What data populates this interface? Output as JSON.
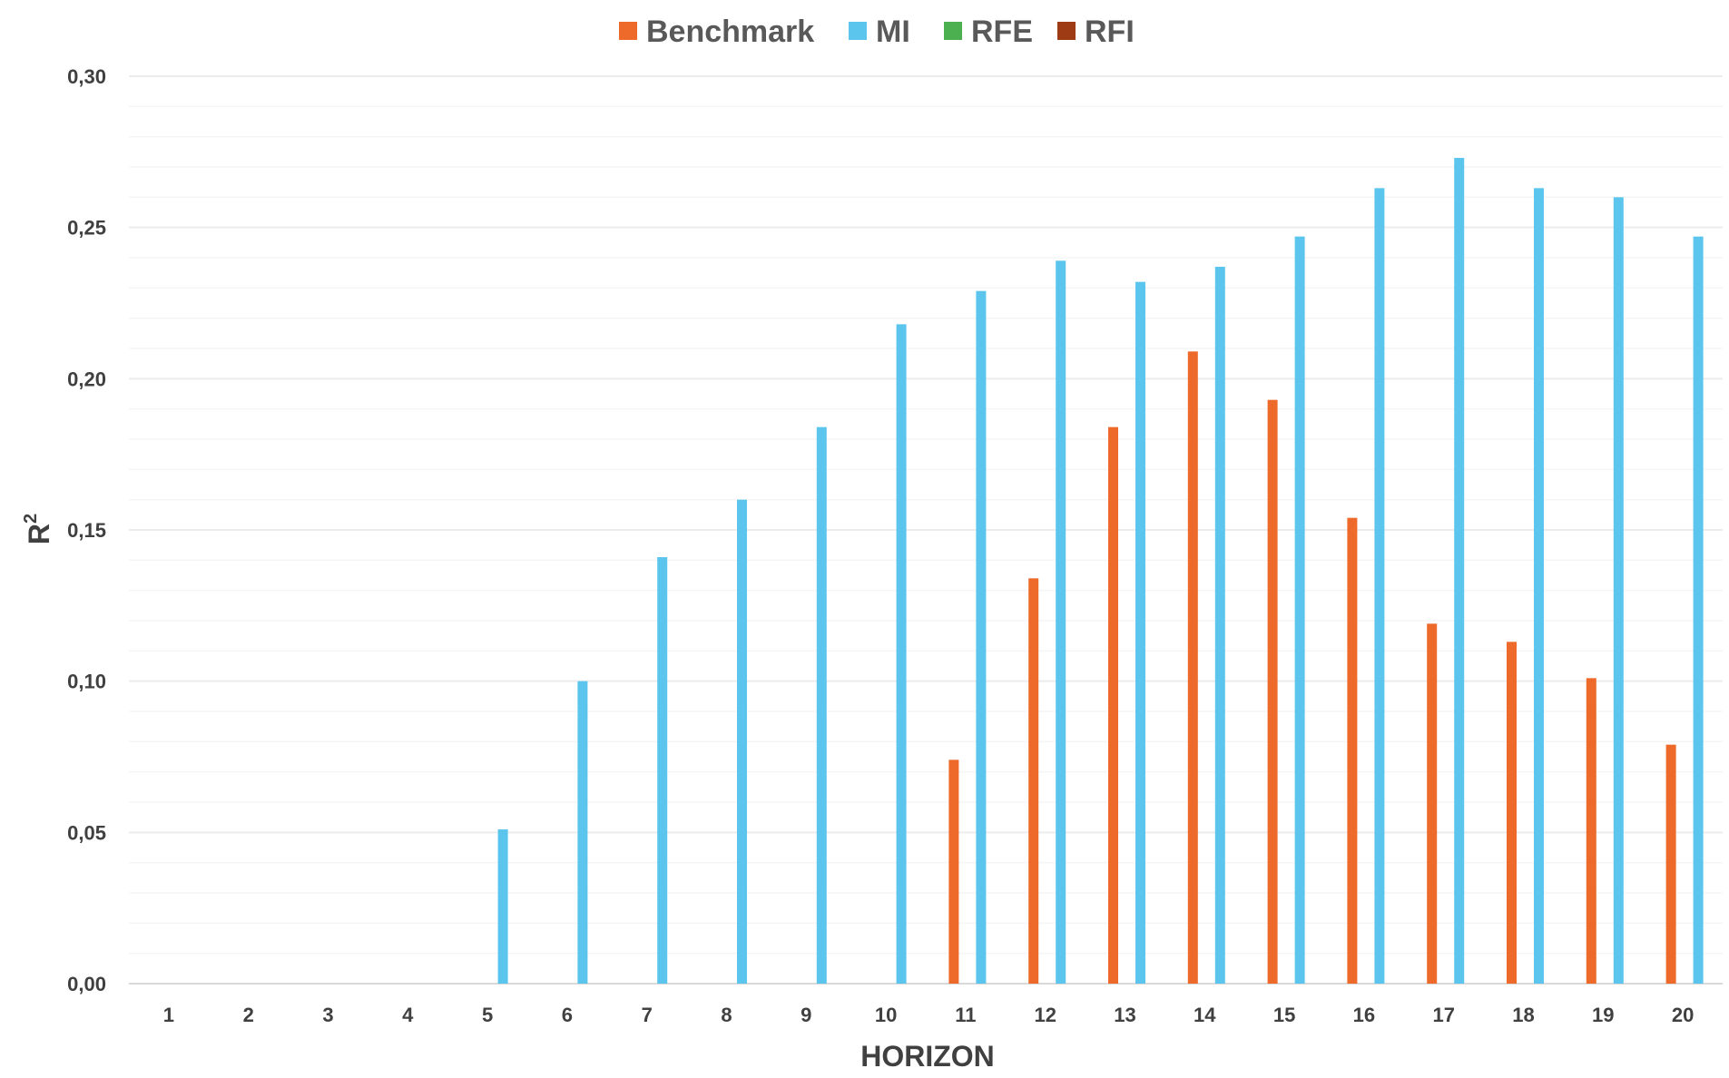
{
  "chart_data": {
    "type": "bar",
    "title": "",
    "xlabel": "HORIZON",
    "ylabel": "R",
    "ylabel_superscript": "2",
    "categories": [
      "1",
      "2",
      "3",
      "4",
      "5",
      "6",
      "7",
      "8",
      "9",
      "10",
      "11",
      "12",
      "13",
      "14",
      "15",
      "16",
      "17",
      "18",
      "19",
      "20"
    ],
    "ylim": [
      0,
      0.3
    ],
    "yticks": [
      0,
      0.05,
      0.1,
      0.15,
      0.2,
      0.25,
      0.3
    ],
    "ytick_labels": [
      "0,00",
      "0,05",
      "0,10",
      "0,15",
      "0,20",
      "0,25",
      "0,30"
    ],
    "grid": true,
    "legend_position": "top-center",
    "series": [
      {
        "name": "Benchmark",
        "color": "#ED6A2A",
        "values": [
          0,
          0,
          0,
          0,
          0,
          0,
          0,
          0,
          0,
          0,
          0.074,
          0.134,
          0.184,
          0.209,
          0.193,
          0.154,
          0.119,
          0.113,
          0.101,
          0.079
        ]
      },
      {
        "name": "MI",
        "color": "#5BC5EE",
        "values": [
          0,
          0,
          0,
          0,
          0.051,
          0.1,
          0.141,
          0.16,
          0.184,
          0.218,
          0.229,
          0.239,
          0.232,
          0.237,
          0.247,
          0.263,
          0.273,
          0.263,
          0.26,
          0.247
        ]
      },
      {
        "name": "RFE",
        "color": "#4CAF50",
        "values": [
          0,
          0,
          0,
          0,
          0,
          0,
          0,
          0,
          0,
          0,
          0,
          0,
          0,
          0,
          0,
          0,
          0,
          0,
          0,
          0
        ]
      },
      {
        "name": "RFI",
        "color": "#9E3A14",
        "values": [
          0,
          0,
          0,
          0,
          0,
          0,
          0,
          0,
          0,
          0,
          0,
          0,
          0,
          0,
          0,
          0,
          0,
          0,
          0,
          0
        ]
      }
    ]
  }
}
